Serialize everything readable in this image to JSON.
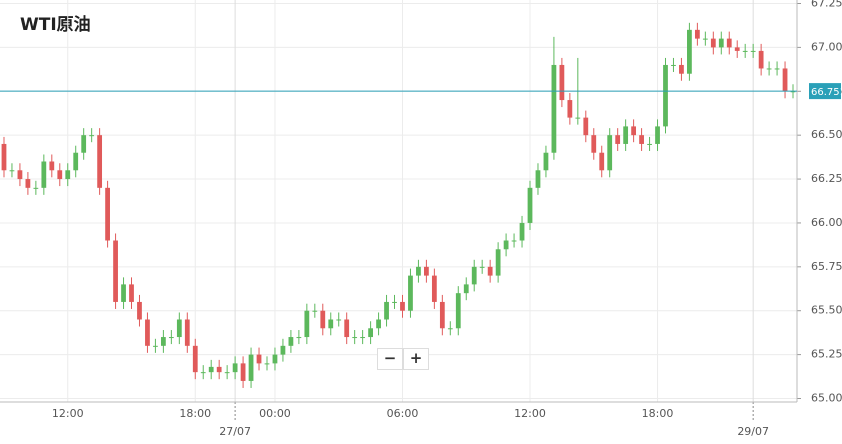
{
  "chart_data": {
    "type": "candlestick",
    "title": "WTI原油",
    "categories": [
      null,
      null,
      null,
      null,
      null,
      null,
      null,
      null,
      "12:00",
      null,
      null,
      null,
      null,
      null,
      null,
      null,
      null,
      null,
      null,
      null,
      null,
      null,
      null,
      null,
      "18:00",
      null,
      null,
      null,
      null,
      null,
      null,
      null,
      null,
      null,
      "00:00",
      null,
      null,
      null,
      null,
      null,
      null,
      null,
      null,
      null,
      null,
      null,
      null,
      null,
      null,
      null,
      "06:00",
      null,
      null,
      null,
      null,
      null,
      null,
      null,
      null,
      null,
      null,
      null,
      null,
      null,
      null,
      null,
      "12:00",
      null,
      null,
      null,
      null,
      null,
      null,
      null,
      null,
      null,
      null,
      null,
      null,
      null,
      null,
      null,
      "18:00",
      null,
      null,
      null,
      null,
      null,
      null,
      null,
      null,
      null,
      null,
      null,
      null,
      null,
      null,
      null,
      null,
      null
    ],
    "dates": [
      null,
      null,
      null,
      null,
      null,
      null,
      null,
      null,
      null,
      null,
      null,
      null,
      null,
      null,
      null,
      null,
      null,
      null,
      null,
      null,
      null,
      null,
      null,
      null,
      null,
      null,
      null,
      null,
      null,
      "27/07",
      null,
      null,
      null,
      null,
      null,
      null,
      null,
      null,
      null,
      null,
      null,
      null,
      null,
      null,
      null,
      null,
      null,
      null,
      null,
      null,
      null,
      null,
      null,
      null,
      null,
      null,
      null,
      null,
      null,
      null,
      null,
      null,
      null,
      null,
      null,
      null,
      null,
      null,
      null,
      null,
      null,
      null,
      null,
      null,
      null,
      null,
      null,
      null,
      null,
      null,
      null,
      null,
      null,
      null,
      null,
      null,
      null,
      null,
      null,
      null,
      null,
      null,
      null,
      null,
      "29/07",
      null,
      null,
      null,
      null,
      null
    ],
    "open": [
      66.45,
      66.3,
      66.3,
      66.25,
      66.2,
      66.2,
      66.35,
      66.3,
      66.25,
      66.3,
      66.4,
      66.5,
      66.5,
      66.2,
      65.9,
      65.55,
      65.65,
      65.55,
      65.45,
      65.3,
      65.3,
      65.35,
      65.35,
      65.45,
      65.3,
      65.15,
      65.15,
      65.18,
      65.15,
      65.15,
      65.2,
      65.1,
      65.25,
      65.2,
      65.2,
      65.25,
      65.3,
      65.35,
      65.35,
      65.5,
      65.5,
      65.4,
      65.45,
      65.45,
      65.35,
      65.35,
      65.35,
      65.4,
      65.45,
      65.55,
      65.55,
      65.5,
      65.7,
      65.75,
      65.7,
      65.55,
      65.4,
      65.4,
      65.6,
      65.65,
      65.75,
      65.75,
      65.7,
      65.85,
      65.9,
      65.9,
      66.0,
      66.2,
      66.3,
      66.4,
      66.9,
      66.7,
      66.6,
      66.6,
      66.5,
      66.4,
      66.3,
      66.5,
      66.45,
      66.55,
      66.5,
      66.45,
      66.45,
      66.55,
      66.9,
      66.9,
      66.85,
      67.1,
      67.05,
      67.05,
      67.0,
      67.05,
      67.0,
      66.98,
      66.98,
      66.98,
      66.88,
      66.88,
      66.88,
      66.75
    ],
    "high": [
      66.49,
      66.34,
      66.34,
      66.29,
      66.24,
      66.39,
      66.39,
      66.34,
      66.34,
      66.44,
      66.54,
      66.54,
      66.54,
      66.24,
      65.94,
      65.69,
      65.69,
      65.59,
      65.49,
      65.34,
      65.39,
      65.39,
      65.49,
      65.49,
      65.34,
      65.19,
      65.22,
      65.22,
      65.19,
      65.24,
      65.24,
      65.29,
      65.29,
      65.24,
      65.29,
      65.34,
      65.39,
      65.39,
      65.54,
      65.54,
      65.54,
      65.49,
      65.49,
      65.49,
      65.39,
      65.39,
      65.44,
      65.49,
      65.59,
      65.59,
      65.59,
      65.74,
      65.79,
      65.79,
      65.74,
      65.59,
      65.44,
      65.64,
      65.69,
      65.79,
      65.79,
      65.79,
      65.89,
      65.94,
      65.94,
      66.04,
      66.24,
      66.34,
      66.44,
      67.06,
      66.94,
      66.74,
      66.94,
      66.64,
      66.54,
      66.44,
      66.54,
      66.54,
      66.59,
      66.59,
      66.54,
      66.49,
      66.59,
      66.94,
      66.94,
      66.94,
      67.14,
      67.14,
      67.09,
      67.09,
      67.09,
      67.09,
      67.04,
      67.02,
      67.02,
      67.02,
      66.92,
      66.92,
      66.92,
      66.79
    ],
    "low": [
      66.26,
      66.26,
      66.21,
      66.16,
      66.16,
      66.16,
      66.26,
      66.21,
      66.21,
      66.26,
      66.36,
      66.46,
      66.16,
      65.86,
      65.51,
      65.51,
      65.51,
      65.41,
      65.26,
      65.26,
      65.26,
      65.31,
      65.31,
      65.26,
      65.11,
      65.11,
      65.11,
      65.11,
      65.11,
      65.11,
      65.06,
      65.06,
      65.16,
      65.16,
      65.16,
      65.21,
      65.26,
      65.31,
      65.31,
      65.46,
      65.36,
      65.36,
      65.41,
      65.31,
      65.31,
      65.31,
      65.31,
      65.36,
      65.41,
      65.51,
      65.46,
      65.46,
      65.66,
      65.66,
      65.51,
      65.36,
      65.36,
      65.36,
      65.56,
      65.61,
      65.71,
      65.66,
      65.66,
      65.81,
      65.86,
      65.86,
      65.96,
      66.16,
      66.26,
      66.36,
      66.66,
      66.56,
      66.56,
      66.46,
      66.36,
      66.26,
      66.26,
      66.41,
      66.41,
      66.46,
      66.41,
      66.41,
      66.41,
      66.51,
      66.86,
      66.81,
      66.81,
      67.01,
      67.01,
      66.96,
      66.96,
      66.96,
      66.94,
      66.94,
      66.94,
      66.84,
      66.84,
      66.84,
      66.71,
      66.71
    ],
    "close": [
      66.3,
      66.3,
      66.25,
      66.2,
      66.2,
      66.35,
      66.3,
      66.25,
      66.3,
      66.4,
      66.5,
      66.5,
      66.2,
      65.9,
      65.55,
      65.65,
      65.55,
      65.45,
      65.3,
      65.3,
      65.35,
      65.35,
      65.45,
      65.3,
      65.15,
      65.15,
      65.18,
      65.15,
      65.15,
      65.2,
      65.1,
      65.25,
      65.2,
      65.2,
      65.25,
      65.3,
      65.35,
      65.35,
      65.5,
      65.5,
      65.4,
      65.45,
      65.45,
      65.35,
      65.35,
      65.35,
      65.4,
      65.45,
      65.55,
      65.55,
      65.5,
      65.7,
      65.75,
      65.7,
      65.55,
      65.4,
      65.4,
      65.6,
      65.65,
      65.75,
      65.75,
      65.7,
      65.85,
      65.9,
      65.9,
      66.0,
      66.2,
      66.3,
      66.4,
      66.9,
      66.7,
      66.6,
      66.6,
      66.5,
      66.4,
      66.3,
      66.5,
      66.45,
      66.55,
      66.5,
      66.45,
      66.45,
      66.55,
      66.9,
      66.9,
      66.85,
      67.1,
      67.05,
      67.05,
      67.0,
      67.05,
      67.0,
      66.98,
      66.98,
      66.98,
      66.88,
      66.88,
      66.88,
      66.75,
      66.75
    ],
    "up_color": "#5cb85c",
    "down_color": "#e05a5a",
    "ylim": [
      64.98,
      67.27
    ],
    "yticks": [
      {
        "value": 65,
        "label": "65.000"
      },
      {
        "value": 65.25,
        "label": "65.250"
      },
      {
        "value": 65.5,
        "label": "65.500"
      },
      {
        "value": 65.75,
        "label": "65.750"
      },
      {
        "value": 66,
        "label": "66.000"
      },
      {
        "value": 66.25,
        "label": "66.250"
      },
      {
        "value": 66.5,
        "label": "66.500"
      },
      {
        "value": 66.75,
        "label": "66.750"
      },
      {
        "value": 67,
        "label": "67.000"
      },
      {
        "value": 67.25,
        "label": "67.250"
      }
    ],
    "last_price": 66.751,
    "last_price_color": "#2aa0b8",
    "grid": true,
    "controls": [
      "−",
      "+"
    ]
  }
}
